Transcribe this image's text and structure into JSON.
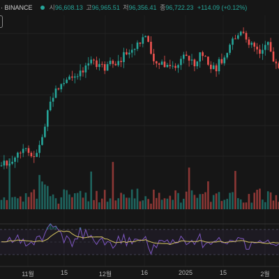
{
  "header": {
    "symbol": "· BINANCE",
    "open_label": "시",
    "open_value": "96,608.13",
    "high_label": "고",
    "high_value": "96,965.51",
    "low_label": "저",
    "low_value": "96,356.41",
    "close_label": "종",
    "close_value": "96,722.23",
    "change": "+114.09 (+0.12%)",
    "status_color": "#26a69a"
  },
  "x_axis": {
    "ticks": [
      "11월",
      "15",
      "12월",
      "16",
      "2025",
      "15",
      "2월"
    ]
  },
  "colors": {
    "up": "#26a69a",
    "down": "#ef5350",
    "rsi_line": "#7e57c2",
    "rsi_ma": "#d6c560",
    "background": "#161616"
  },
  "chart_data": [
    {
      "type": "candlestick",
      "x": [
        "11월",
        "15",
        "12월",
        "16",
        "2025",
        "15",
        "2월"
      ],
      "y_range": [
        68000,
        109000
      ],
      "grid": true
    },
    {
      "type": "bar",
      "x": [
        "11월",
        "15",
        "12월",
        "16",
        "2025",
        "15",
        "2월"
      ]
    },
    {
      "type": "line",
      "x": [
        "11월",
        "15",
        "12월",
        "16",
        "2025",
        "15",
        "2월"
      ],
      "y_range": [
        0,
        100
      ],
      "bands": [
        30,
        70
      ]
    }
  ]
}
